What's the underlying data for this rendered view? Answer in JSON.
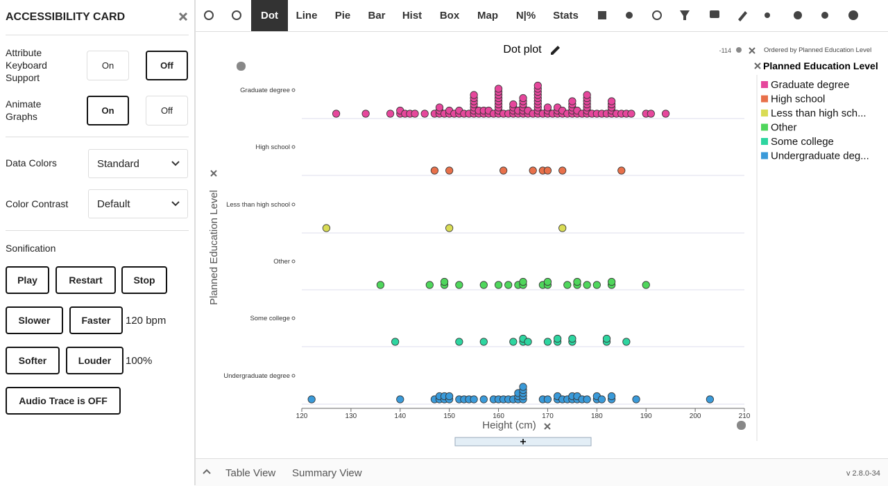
{
  "panel": {
    "title": "ACCESSIBILITY CARD",
    "keyboard": {
      "label": "Attribute Keyboard Support",
      "on": "On",
      "off": "Off"
    },
    "animate": {
      "label": "Animate Graphs",
      "on": "On",
      "off": "Off"
    },
    "data_colors": {
      "label": "Data Colors",
      "value": "Standard"
    },
    "color_contrast": {
      "label": "Color Contrast",
      "value": "Default"
    },
    "sonification": "Sonification",
    "play": "Play",
    "restart": "Restart",
    "stop": "Stop",
    "slower": "Slower",
    "faster": "Faster",
    "tempo": "120 bpm",
    "softer": "Softer",
    "louder": "Louder",
    "volume": "100%",
    "audio_trace": "Audio Trace is OFF"
  },
  "toolbar": [
    "Dot",
    "Line",
    "Pie",
    "Bar",
    "Hist",
    "Box",
    "Map",
    "N|%",
    "Stats"
  ],
  "chart_data": {
    "type": "dot",
    "title": "Dot plot",
    "xlabel": "Height (cm)",
    "ylabel": "Planned Education Level",
    "count_label": "-114",
    "order_note": "Ordered by Planned Education Level",
    "legend_title": "Planned Education Level",
    "legend_labels": [
      "Graduate degree",
      "High school",
      "Less than high sch...",
      "Other",
      "Some college",
      "Undergraduate deg..."
    ],
    "xlim": [
      120,
      210
    ],
    "xticks": [
      120,
      130,
      140,
      150,
      160,
      170,
      180,
      190,
      200,
      210
    ],
    "series": [
      {
        "name": "Graduate degree",
        "color": "#e6479c",
        "values": [
          127,
          133,
          138,
          140,
          140,
          141,
          142,
          143,
          145,
          147,
          148,
          148,
          148,
          149,
          150,
          150,
          151,
          152,
          152,
          153,
          154,
          155,
          155,
          155,
          155,
          155,
          155,
          155,
          156,
          156,
          157,
          157,
          158,
          158,
          159,
          160,
          160,
          160,
          160,
          160,
          160,
          160,
          160,
          160,
          161,
          162,
          163,
          163,
          163,
          163,
          164,
          164,
          165,
          165,
          165,
          165,
          165,
          165,
          166,
          166,
          167,
          168,
          168,
          168,
          168,
          168,
          168,
          168,
          168,
          168,
          168,
          169,
          170,
          170,
          170,
          171,
          172,
          172,
          172,
          173,
          173,
          174,
          175,
          175,
          175,
          175,
          175,
          176,
          176,
          177,
          178,
          178,
          178,
          178,
          178,
          178,
          178,
          179,
          180,
          181,
          182,
          183,
          183,
          183,
          183,
          183,
          184,
          185,
          186,
          187,
          190,
          191,
          194
        ]
      },
      {
        "name": "High school",
        "color": "#e8704a",
        "values": [
          147,
          150,
          161,
          167,
          169,
          170,
          173,
          185
        ]
      },
      {
        "name": "Less than high school",
        "color": "#d9dc55",
        "values": [
          125,
          150,
          173
        ]
      },
      {
        "name": "Other",
        "color": "#4fd65c",
        "values": [
          136,
          146,
          149,
          149,
          152,
          157,
          160,
          162,
          164,
          165,
          165,
          169,
          170,
          170,
          174,
          176,
          176,
          178,
          180,
          183,
          183,
          190
        ]
      },
      {
        "name": "Some college",
        "color": "#2ed5a0",
        "values": [
          139,
          152,
          157,
          163,
          165,
          165,
          166,
          170,
          172,
          172,
          175,
          175,
          182,
          182,
          186
        ]
      },
      {
        "name": "Undergraduate degree",
        "color": "#3a9ad9",
        "values": [
          122,
          140,
          147,
          148,
          148,
          149,
          149,
          150,
          150,
          152,
          153,
          154,
          155,
          157,
          159,
          160,
          161,
          162,
          163,
          164,
          164,
          164,
          165,
          165,
          165,
          165,
          165,
          169,
          170,
          172,
          172,
          173,
          174,
          175,
          175,
          176,
          176,
          177,
          178,
          180,
          180,
          181,
          183,
          183,
          188,
          203
        ]
      }
    ]
  },
  "footer": {
    "table_view": "Table View",
    "summary_view": "Summary View",
    "version": "v 2.8.0-34"
  }
}
